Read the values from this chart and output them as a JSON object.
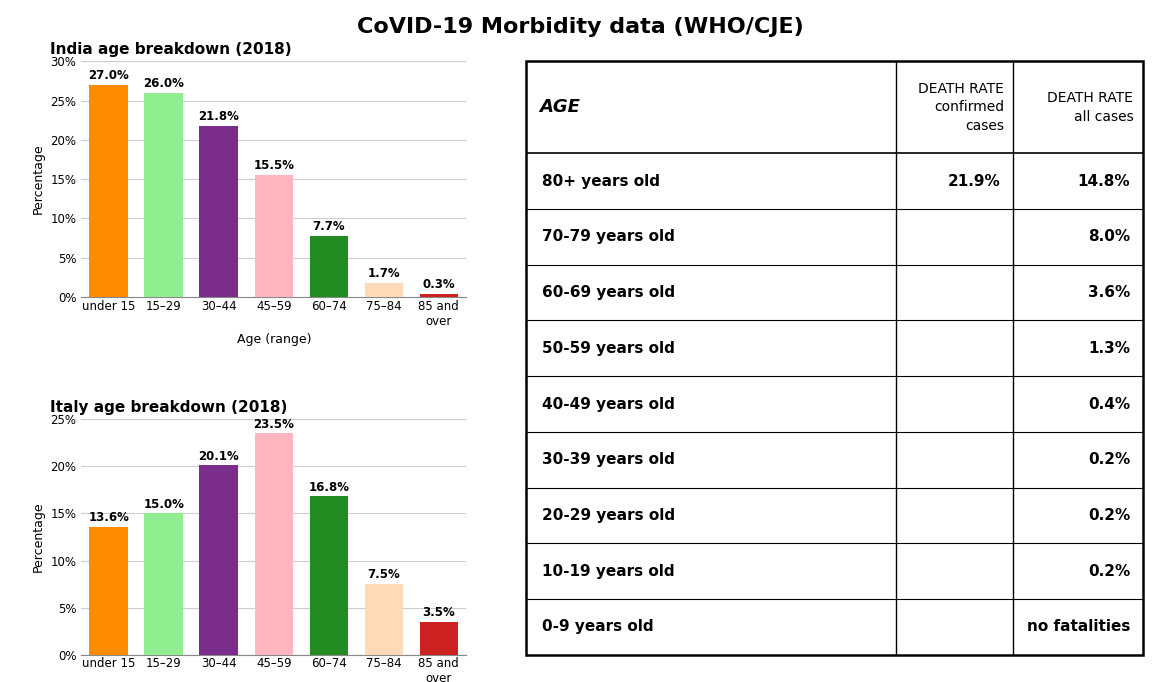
{
  "title": "CoVID-19 Morbidity data (WHO/CJE)",
  "india_title": "India age breakdown (2018)",
  "italy_title": "Italy age breakdown (2018)",
  "age_categories": [
    "under 15",
    "15–29",
    "30–44",
    "45–59",
    "60–74",
    "75–84",
    "85 and\nover"
  ],
  "india_values": [
    27.0,
    26.0,
    21.8,
    15.5,
    7.7,
    1.7,
    0.3
  ],
  "italy_values": [
    13.6,
    15.0,
    20.1,
    23.5,
    16.8,
    7.5,
    3.5
  ],
  "bar_colors": [
    "#FF8C00",
    "#90EE90",
    "#7B2D8B",
    "#FFB6C1",
    "#228B22",
    "#FFDAB9",
    "#CC2222"
  ],
  "india_ylim": [
    0,
    30
  ],
  "italy_ylim": [
    0,
    25
  ],
  "india_yticks": [
    0,
    5,
    10,
    15,
    20,
    25,
    30
  ],
  "italy_yticks": [
    0,
    5,
    10,
    15,
    20,
    25
  ],
  "ylabel": "Percentage",
  "xlabel": "Age (range)",
  "table_header_col1": "AGE",
  "table_header_col2": "DEATH RATE\nconfirmed\ncases",
  "table_header_col3": "DEATH RATE\nall cases",
  "table_ages": [
    "80+ years old",
    "70-79 years old",
    "60-69 years old",
    "50-59 years old",
    "40-49 years old",
    "30-39 years old",
    "20-29 years old",
    "10-19 years old",
    "0-9 years old"
  ],
  "table_confirmed": [
    "21.9%",
    "",
    "",
    "",
    "",
    "",
    "",
    "",
    ""
  ],
  "table_all": [
    "14.8%",
    "8.0%",
    "3.6%",
    "1.3%",
    "0.4%",
    "0.2%",
    "0.2%",
    "0.2%",
    "no fatalities"
  ],
  "background_color": "#FFFFFF",
  "grid_color": "#CCCCCC",
  "bar_label_fontsize": 8.5,
  "axis_label_fontsize": 9,
  "tick_fontsize": 8.5,
  "chart_title_fontsize": 11,
  "main_title_fontsize": 16
}
